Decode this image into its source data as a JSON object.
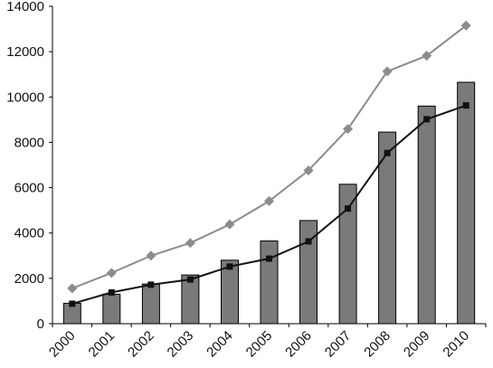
{
  "chart_data": {
    "type": "bar",
    "categories": [
      "2000",
      "2001",
      "2002",
      "2003",
      "2004",
      "2005",
      "2006",
      "2007",
      "2008",
      "2009",
      "2010"
    ],
    "ylim": [
      0,
      14000
    ],
    "yticks": [
      "0",
      "2000",
      "4000",
      "6000",
      "8000",
      "10000",
      "12000",
      "14000"
    ],
    "grid": false,
    "legend": "none",
    "series": [
      {
        "type": "bar",
        "color": "#7a7a7a",
        "values": [
          900,
          1300,
          1750,
          2150,
          2800,
          3650,
          4550,
          6150,
          8450,
          9600,
          10650
        ]
      },
      {
        "type": "line",
        "marker": "square",
        "color": "#111111",
        "values": [
          880,
          1380,
          1720,
          1950,
          2520,
          2870,
          3630,
          5080,
          7530,
          9020,
          9630
        ]
      },
      {
        "type": "line",
        "marker": "diamond",
        "color": "#8c8c8c",
        "values": [
          1560,
          2240,
          3000,
          3560,
          4380,
          5410,
          6760,
          8590,
          11130,
          11820,
          13150
        ]
      }
    ]
  }
}
